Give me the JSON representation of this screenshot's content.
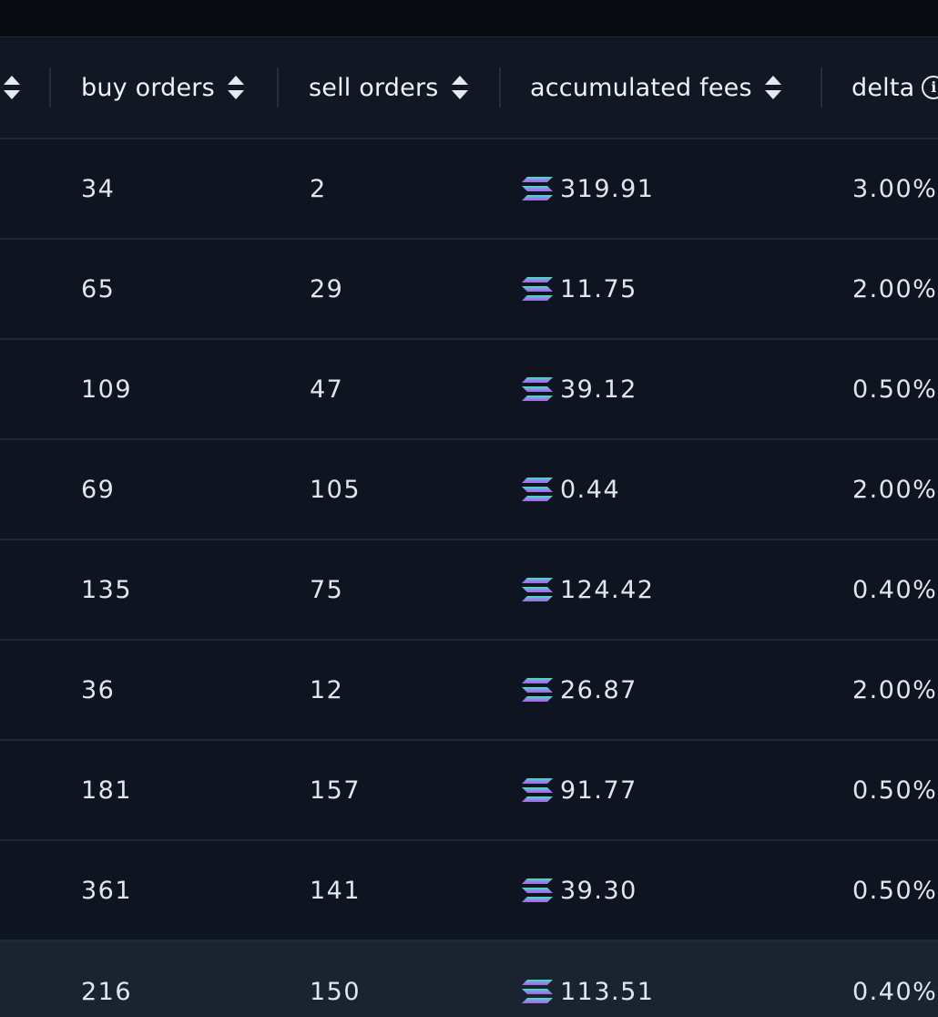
{
  "header": {
    "columns": [
      {
        "key": "buy",
        "label": "buy orders"
      },
      {
        "key": "sell",
        "label": "sell orders"
      },
      {
        "key": "fees",
        "label": "accumulated fees"
      },
      {
        "key": "delta",
        "label": "delta"
      }
    ]
  },
  "rows": [
    {
      "buy": "34",
      "sell": "2",
      "fees": "319.91",
      "delta": "3.00%"
    },
    {
      "buy": "65",
      "sell": "29",
      "fees": "11.75",
      "delta": "2.00%"
    },
    {
      "buy": "109",
      "sell": "47",
      "fees": "39.12",
      "delta": "0.50%"
    },
    {
      "buy": "69",
      "sell": "105",
      "fees": "0.44",
      "delta": "2.00%"
    },
    {
      "buy": "135",
      "sell": "75",
      "fees": "124.42",
      "delta": "0.40%"
    },
    {
      "buy": "36",
      "sell": "12",
      "fees": "26.87",
      "delta": "2.00%"
    },
    {
      "buy": "181",
      "sell": "157",
      "fees": "91.77",
      "delta": "0.50%"
    },
    {
      "buy": "361",
      "sell": "141",
      "fees": "39.30",
      "delta": "0.50%"
    },
    {
      "buy": "216",
      "sell": "150",
      "fees": "113.51",
      "delta": "0.40%"
    }
  ],
  "icons": {
    "sort": "sort-icon",
    "info": "info-icon",
    "currency": "solana-icon"
  },
  "colors": {
    "background": "#0f1520",
    "header_background": "#111823",
    "hover_row": "#1a2431",
    "text": "#e2e6ec",
    "sol_gradient_start": "#3ee6b8",
    "sol_gradient_end": "#b45cf0"
  }
}
